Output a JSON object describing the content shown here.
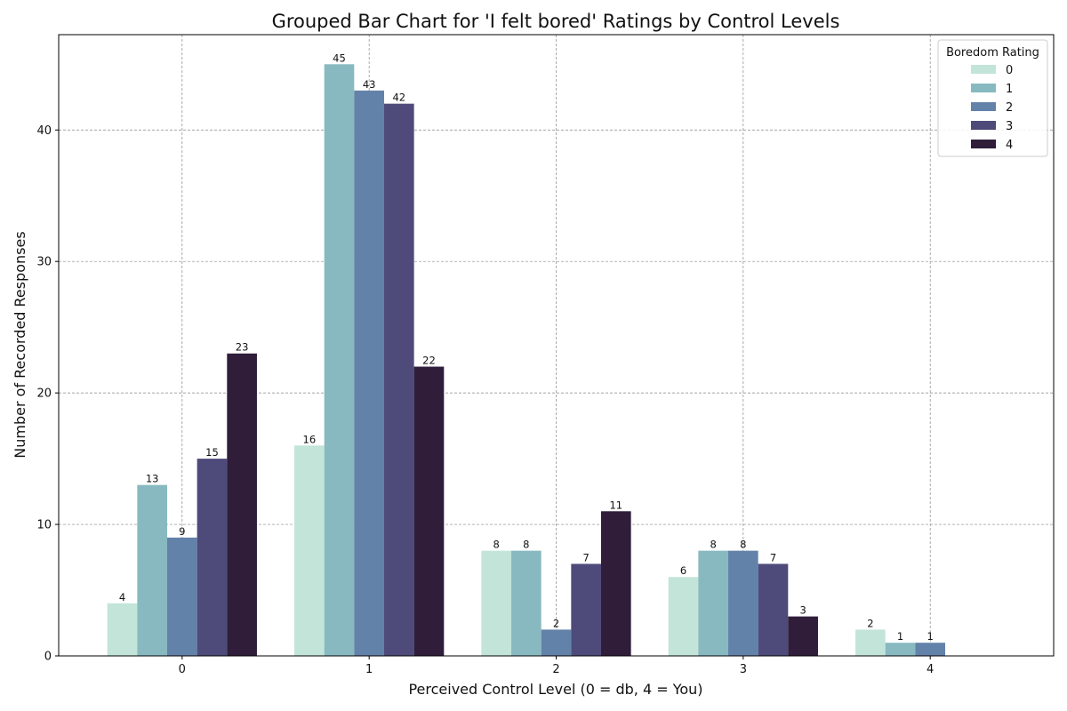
{
  "chart_data": {
    "type": "bar",
    "title": "Grouped Bar Chart for 'I felt bored' Ratings by Control Levels",
    "xlabel": "Perceived Control Level (0 = db, 4 = You)",
    "ylabel": "Number of Recorded Responses",
    "categories": [
      "0",
      "1",
      "2",
      "3",
      "4"
    ],
    "ylim": [
      0,
      47.25
    ],
    "yticks": [
      0,
      10,
      20,
      30,
      40
    ],
    "grid": true,
    "legend": {
      "title": "Boredom Rating",
      "placement": "top-right"
    },
    "series": [
      {
        "name": "0",
        "color": "#c3e4d9",
        "values": [
          4,
          16,
          8,
          6,
          2
        ]
      },
      {
        "name": "1",
        "color": "#88b9c1",
        "values": [
          13,
          45,
          8,
          8,
          1
        ]
      },
      {
        "name": "2",
        "color": "#6382a9",
        "values": [
          9,
          43,
          2,
          8,
          1
        ]
      },
      {
        "name": "3",
        "color": "#4e4b7b",
        "values": [
          15,
          42,
          7,
          7,
          0
        ]
      },
      {
        "name": "4",
        "color": "#2f1d3a",
        "values": [
          23,
          22,
          11,
          3,
          0
        ]
      }
    ]
  }
}
